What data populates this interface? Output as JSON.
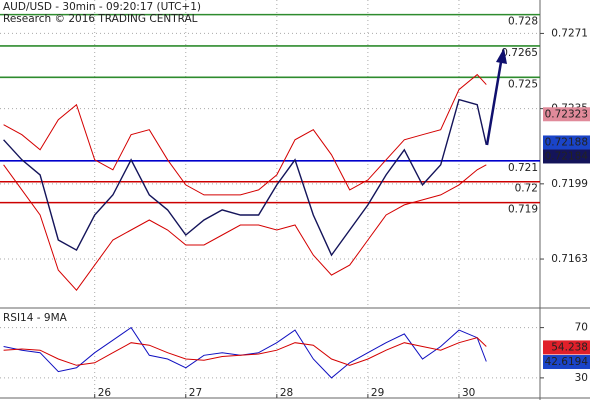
{
  "chart_data": [
    {
      "type": "line",
      "title": "AUD/USD - 30min - 09:20:17 (UTC+1)",
      "subtitle": "Research © 2016 TRADING CENTRAL",
      "x": [
        25.0,
        25.2,
        25.4,
        25.6,
        25.8,
        26.0,
        26.2,
        26.4,
        26.6,
        26.8,
        27.0,
        27.2,
        27.4,
        27.6,
        27.8,
        28.0,
        28.2,
        28.4,
        28.6,
        28.8,
        29.0,
        29.2,
        29.4,
        29.6,
        29.8,
        30.0,
        30.2,
        30.3
      ],
      "xlim": [
        24.96,
        30.89
      ],
      "xticks": [
        26,
        27,
        28,
        29,
        30
      ],
      "ylim": [
        0.7141,
        0.7287
      ],
      "yticks": [
        0.7271,
        0.7235,
        0.7199,
        0.7163
      ],
      "grid": true,
      "series": [
        {
          "color": "#d40000",
          "values": [
            0.72273,
            0.72225,
            0.72153,
            0.72297,
            0.72369,
            0.72105,
            0.72057,
            0.72225,
            0.72249,
            0.72105,
            0.71985,
            0.71937,
            0.71937,
            0.71937,
            0.71961,
            0.72033,
            0.72201,
            0.72249,
            0.72129,
            0.71961,
            0.72009,
            0.72105,
            0.72201,
            0.72225,
            0.72249,
            0.72441,
            0.72513,
            0.72465
          ]
        },
        {
          "color": "#d40000",
          "values": [
            0.72081,
            0.71961,
            0.71841,
            0.71577,
            0.71481,
            0.71601,
            0.71721,
            0.71769,
            0.71817,
            0.71769,
            0.71697,
            0.71697,
            0.71745,
            0.71793,
            0.71793,
            0.71769,
            0.71793,
            0.71649,
            0.71553,
            0.71601,
            0.71721,
            0.71841,
            0.71889,
            0.71913,
            0.71937,
            0.71985,
            0.72057,
            0.72081
          ]
        },
        {
          "color": "#14145a",
          "values": [
            0.72201,
            0.72105,
            0.72033,
            0.71721,
            0.71673,
            0.71841,
            0.71937,
            0.72105,
            0.71937,
            0.71865,
            0.71745,
            0.71817,
            0.71865,
            0.71841,
            0.71841,
            0.71985,
            0.72105,
            0.71841,
            0.71649,
            0.71769,
            0.71889,
            0.72033,
            0.72153,
            0.71985,
            0.72081,
            0.72393,
            0.72369,
            0.72177
          ]
        }
      ],
      "levels": [
        {
          "value": 0.728,
          "color": "#2e8b2e"
        },
        {
          "value": 0.7265,
          "color": "#2e8b2e"
        },
        {
          "value": 0.725,
          "color": "#2e8b2e"
        },
        {
          "value": 0.721,
          "color": "#0000cc"
        },
        {
          "value": 0.72,
          "color": "#cc0000"
        },
        {
          "value": 0.719,
          "color": "#cc0000"
        }
      ],
      "last_values": [
        {
          "value": 0.72323,
          "color": "#e08a9a"
        },
        {
          "value": 0.72188,
          "color": "#1a44c8"
        },
        {
          "value": 0.72184,
          "color": "#14145a"
        }
      ]
    },
    {
      "type": "line",
      "title": "RSI14 - 9MA",
      "x": [
        25.0,
        25.2,
        25.4,
        25.6,
        25.8,
        26.0,
        26.2,
        26.4,
        26.6,
        26.8,
        27.0,
        27.2,
        27.4,
        27.6,
        27.8,
        28.0,
        28.2,
        28.4,
        28.6,
        28.8,
        29.0,
        29.2,
        29.4,
        29.6,
        29.8,
        30.0,
        30.2,
        30.3
      ],
      "xlim": [
        24.96,
        30.89
      ],
      "ylim": [
        14,
        84
      ],
      "yticks": [
        70,
        30
      ],
      "grid": true,
      "series": [
        {
          "color": "#1010c0",
          "values": [
            55,
            52,
            50,
            35,
            38,
            50,
            60,
            70,
            48,
            45,
            38,
            48,
            50,
            48,
            50,
            58,
            68,
            45,
            30,
            42,
            50,
            58,
            65,
            45,
            55,
            68,
            62,
            43
          ]
        },
        {
          "color": "#d40000",
          "values": [
            52,
            53,
            52,
            45,
            40,
            42,
            50,
            58,
            56,
            50,
            45,
            44,
            47,
            48,
            49,
            52,
            58,
            56,
            45,
            40,
            45,
            52,
            58,
            55,
            52,
            58,
            62,
            55
          ]
        }
      ],
      "last_values": [
        {
          "value": 54.238,
          "color": "#e0202a"
        },
        {
          "value": 42.6194,
          "color": "#1a44c8"
        }
      ]
    }
  ]
}
